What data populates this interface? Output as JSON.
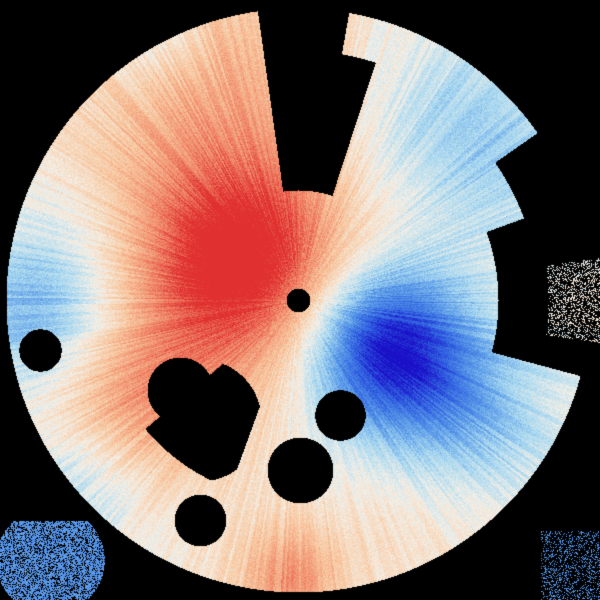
{
  "image": {
    "kind": "radar-doppler-velocity-ppi",
    "background_color": "#000000",
    "radar_site_marker_color": "#000000",
    "colormap": [
      "#1a10c8",
      "#2f5fe0",
      "#5a9ae8",
      "#a8d8f0",
      "#f4f0e8",
      "#f8c8a0",
      "#f08a6a",
      "#e03030"
    ],
    "inbound_color": "#2f5fe0",
    "outbound_color": "#e03030"
  }
}
